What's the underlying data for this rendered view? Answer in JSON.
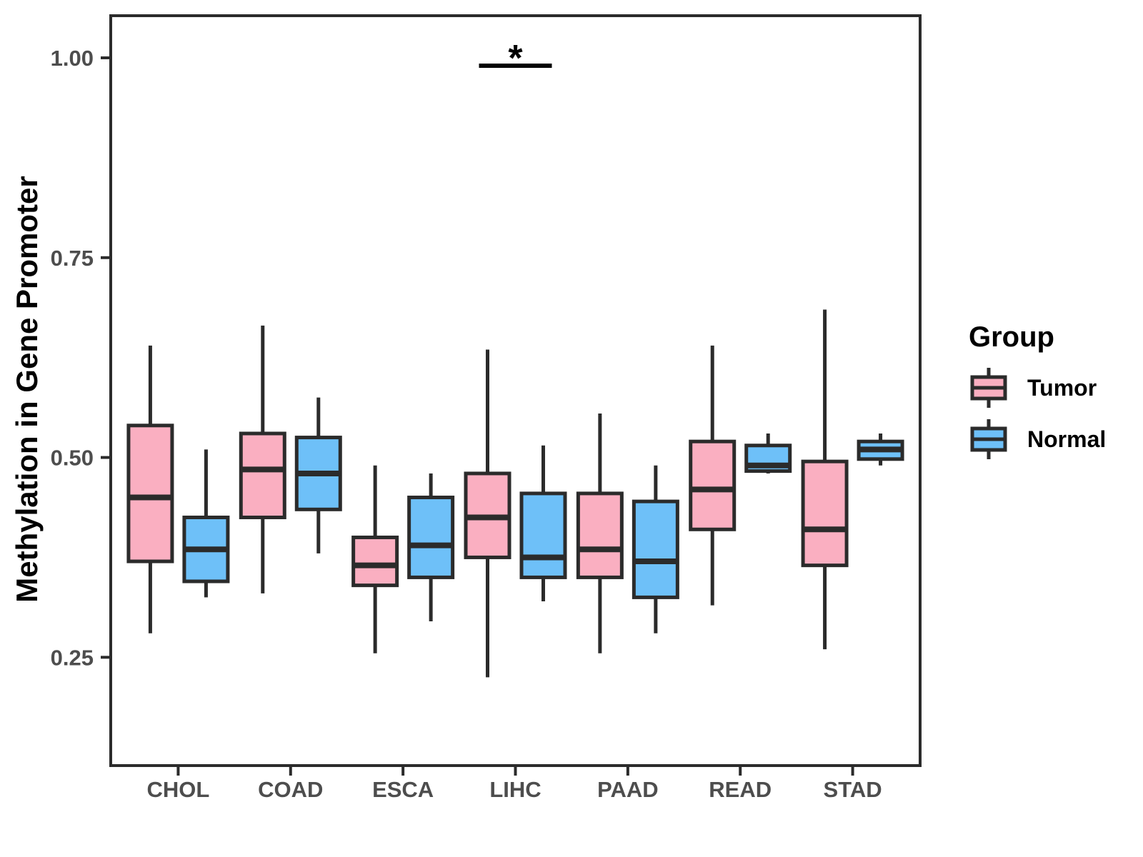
{
  "figure": {
    "background": "#FFFFFF"
  },
  "chart_data": {
    "type": "boxplot",
    "title": "",
    "xlabel": "",
    "ylabel": "Methylation in Gene Promoter",
    "categories": [
      "CHOL",
      "COAD",
      "ESCA",
      "LIHC",
      "PAAD",
      "READ",
      "STAD"
    ],
    "y_ticks": [
      {
        "value": 0.25,
        "label": "0.25"
      },
      {
        "value": 0.5,
        "label": "0.50"
      },
      {
        "value": 0.75,
        "label": "0.75"
      },
      {
        "value": 1.0,
        "label": "1.00"
      }
    ],
    "ylim": [
      0.1145,
      1.0527
    ],
    "grid": "off",
    "legend": {
      "title": "Group",
      "position": "right",
      "entries": [
        {
          "label": "Tumor",
          "color": "#FAAFC1"
        },
        {
          "label": "Normal",
          "color": "#6EC0F8"
        }
      ]
    },
    "significance": [
      {
        "category": "LIHC",
        "label": "*",
        "compares": [
          "Tumor",
          "Normal"
        ]
      }
    ],
    "style": {
      "box_border": "#2B2B2B",
      "axis_line": "#2B2B2B",
      "axis_text": "#4D4D4D",
      "axis_title_color": "#000000"
    },
    "series": [
      {
        "name": "Tumor",
        "color": "#FAAFC1",
        "boxes": [
          {
            "category": "CHOL",
            "min": 0.28,
            "q1": 0.37,
            "median": 0.45,
            "q3": 0.54,
            "max": 0.64
          },
          {
            "category": "COAD",
            "min": 0.33,
            "q1": 0.425,
            "median": 0.485,
            "q3": 0.53,
            "max": 0.665
          },
          {
            "category": "ESCA",
            "min": 0.255,
            "q1": 0.34,
            "median": 0.365,
            "q3": 0.4,
            "max": 0.49
          },
          {
            "category": "LIHC",
            "min": 0.225,
            "q1": 0.375,
            "median": 0.425,
            "q3": 0.48,
            "max": 0.635
          },
          {
            "category": "PAAD",
            "min": 0.255,
            "q1": 0.35,
            "median": 0.385,
            "q3": 0.455,
            "max": 0.555
          },
          {
            "category": "READ",
            "min": 0.315,
            "q1": 0.41,
            "median": 0.46,
            "q3": 0.52,
            "max": 0.64
          },
          {
            "category": "STAD",
            "min": 0.26,
            "q1": 0.365,
            "median": 0.41,
            "q3": 0.495,
            "max": 0.685
          }
        ]
      },
      {
        "name": "Normal",
        "color": "#6EC0F8",
        "boxes": [
          {
            "category": "CHOL",
            "min": 0.325,
            "q1": 0.345,
            "median": 0.385,
            "q3": 0.425,
            "max": 0.51
          },
          {
            "category": "COAD",
            "min": 0.38,
            "q1": 0.435,
            "median": 0.48,
            "q3": 0.525,
            "max": 0.575
          },
          {
            "category": "ESCA",
            "min": 0.295,
            "q1": 0.35,
            "median": 0.39,
            "q3": 0.45,
            "max": 0.48
          },
          {
            "category": "LIHC",
            "min": 0.32,
            "q1": 0.35,
            "median": 0.375,
            "q3": 0.455,
            "max": 0.515
          },
          {
            "category": "PAAD",
            "min": 0.28,
            "q1": 0.325,
            "median": 0.37,
            "q3": 0.445,
            "max": 0.49
          },
          {
            "category": "READ",
            "min": 0.48,
            "q1": 0.483,
            "median": 0.49,
            "q3": 0.515,
            "max": 0.53
          },
          {
            "category": "STAD",
            "min": 0.49,
            "q1": 0.498,
            "median": 0.51,
            "q3": 0.52,
            "max": 0.53
          }
        ]
      }
    ]
  }
}
